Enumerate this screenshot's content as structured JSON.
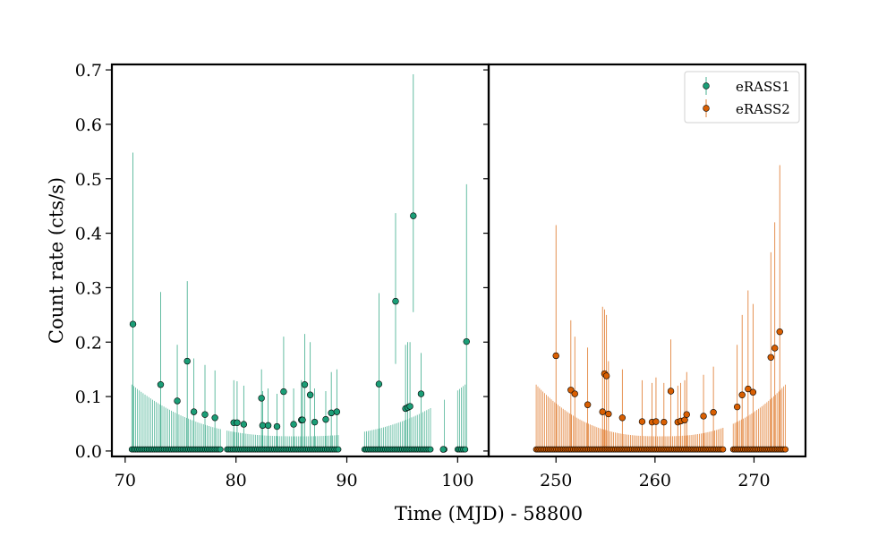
{
  "chart_data": {
    "type": "scatter",
    "title": "",
    "ylabel": "Count rate (cts/s)",
    "xlabel": "Time (MJD) - 58800",
    "colors": {
      "erass1": "#1b9e77",
      "erass2": "#d95f02"
    },
    "legend": {
      "placement": "top-right",
      "entries": [
        {
          "name": "eRASS1",
          "color": "#1b9e77"
        },
        {
          "name": "eRASS2",
          "color": "#d95f02"
        }
      ]
    },
    "ylim": [
      -0.01,
      0.71
    ],
    "yticks": [
      0.0,
      0.1,
      0.2,
      0.3,
      0.4,
      0.5,
      0.6,
      0.7
    ],
    "ytick_labels": [
      "0.0",
      "0.1",
      "0.2",
      "0.3",
      "0.4",
      "0.5",
      "0.6",
      "0.7"
    ],
    "panels": [
      {
        "xlim": [
          68.8,
          102.8
        ],
        "xticks": [
          70,
          80,
          90,
          100
        ],
        "xtick_labels": [
          "70",
          "80",
          "90",
          "100"
        ],
        "series": [
          {
            "name": "eRASS1",
            "color": "#1b9e77",
            "zero_segments": [
              {
                "start": 70.6,
                "end": 78.6,
                "step": 0.17
              },
              {
                "start": 79.2,
                "end": 89.3,
                "step": 0.17
              },
              {
                "start": 91.6,
                "end": 97.7,
                "step": 0.17
              },
              {
                "start": 98.8,
                "end": 98.8,
                "step": 0.17
              },
              {
                "start": 100.0,
                "end": 100.8,
                "step": 0.17
              }
            ],
            "points": [
              {
                "x": 70.7,
                "y": 0.233,
                "err": [
                  0.0,
                  0.548
                ]
              },
              {
                "x": 73.2,
                "y": 0.122,
                "err": [
                  0.0,
                  0.292
                ]
              },
              {
                "x": 74.7,
                "y": 0.092,
                "err": [
                  0.0,
                  0.195
                ]
              },
              {
                "x": 75.6,
                "y": 0.165,
                "err": [
                  0.0,
                  0.312
                ]
              },
              {
                "x": 76.2,
                "y": 0.072,
                "err": [
                  0.0,
                  0.17
                ]
              },
              {
                "x": 77.2,
                "y": 0.067,
                "err": [
                  0.0,
                  0.158
                ]
              },
              {
                "x": 78.1,
                "y": 0.061,
                "err": [
                  0.0,
                  0.148
                ]
              },
              {
                "x": 79.8,
                "y": 0.052,
                "err": [
                  0.0,
                  0.13
                ]
              },
              {
                "x": 80.1,
                "y": 0.052,
                "err": [
                  0.0,
                  0.128
                ]
              },
              {
                "x": 80.7,
                "y": 0.049,
                "err": [
                  0.0,
                  0.12
                ]
              },
              {
                "x": 82.3,
                "y": 0.097,
                "err": [
                  0.0,
                  0.15
                ]
              },
              {
                "x": 82.4,
                "y": 0.047,
                "err": [
                  0.0,
                  0.11
                ]
              },
              {
                "x": 82.9,
                "y": 0.047,
                "err": [
                  0.0,
                  0.115
                ]
              },
              {
                "x": 83.7,
                "y": 0.045,
                "err": [
                  0.0,
                  0.105
                ]
              },
              {
                "x": 84.3,
                "y": 0.109,
                "err": [
                  0.0,
                  0.21
                ]
              },
              {
                "x": 85.2,
                "y": 0.049,
                "err": [
                  0.0,
                  0.115
                ]
              },
              {
                "x": 85.9,
                "y": 0.057,
                "err": [
                  0.0,
                  0.13
                ]
              },
              {
                "x": 86.0,
                "y": 0.057,
                "err": [
                  0.0,
                  0.12
                ]
              },
              {
                "x": 86.2,
                "y": 0.122,
                "err": [
                  0.0,
                  0.215
                ]
              },
              {
                "x": 86.7,
                "y": 0.103,
                "err": [
                  0.0,
                  0.2
                ]
              },
              {
                "x": 87.1,
                "y": 0.053,
                "err": [
                  0.0,
                  0.115
                ]
              },
              {
                "x": 88.1,
                "y": 0.058,
                "err": [
                  0.0,
                  0.11
                ]
              },
              {
                "x": 88.6,
                "y": 0.07,
                "err": [
                  0.0,
                  0.145
                ]
              },
              {
                "x": 89.1,
                "y": 0.072,
                "err": [
                  0.0,
                  0.15
                ]
              },
              {
                "x": 92.9,
                "y": 0.123,
                "err": [
                  0.0,
                  0.29
                ]
              },
              {
                "x": 94.4,
                "y": 0.275,
                "err": [
                  0.16,
                  0.437
                ]
              },
              {
                "x": 95.3,
                "y": 0.078,
                "err": [
                  0.0,
                  0.195
                ]
              },
              {
                "x": 95.5,
                "y": 0.08,
                "err": [
                  0.0,
                  0.2
                ]
              },
              {
                "x": 95.7,
                "y": 0.082,
                "err": [
                  0.0,
                  0.2
                ]
              },
              {
                "x": 96.0,
                "y": 0.432,
                "err": [
                  0.255,
                  0.692
                ]
              },
              {
                "x": 96.7,
                "y": 0.105,
                "err": [
                  0.0,
                  0.18
                ]
              },
              {
                "x": 98.7,
                "y": 0.003,
                "err": [
                  0.0,
                  0.0
                ]
              },
              {
                "x": 100.8,
                "y": 0.201,
                "err": [
                  0.0,
                  0.49
                ]
              }
            ]
          }
        ]
      },
      {
        "xlim": [
          243.2,
          275.2
        ],
        "xticks": [
          250,
          260,
          270
        ],
        "xtick_labels": [
          "250",
          "260",
          "270"
        ],
        "series": [
          {
            "name": "eRASS2",
            "color": "#d95f02",
            "zero_segments": [
              {
                "start": 248.0,
                "end": 266.9,
                "step": 0.17
              },
              {
                "start": 267.9,
                "end": 273.2,
                "step": 0.17
              }
            ],
            "points": [
              {
                "x": 250.0,
                "y": 0.175,
                "err": [
                  0.0,
                  0.415
                ]
              },
              {
                "x": 251.5,
                "y": 0.112,
                "err": [
                  0.0,
                  0.24
                ]
              },
              {
                "x": 251.9,
                "y": 0.105,
                "err": [
                  0.0,
                  0.21
                ]
              },
              {
                "x": 253.2,
                "y": 0.085,
                "err": [
                  0.0,
                  0.19
                ]
              },
              {
                "x": 254.7,
                "y": 0.072,
                "err": [
                  0.0,
                  0.265
                ]
              },
              {
                "x": 254.9,
                "y": 0.142,
                "err": [
                  0.0,
                  0.26
                ]
              },
              {
                "x": 255.1,
                "y": 0.138,
                "err": [
                  0.0,
                  0.25
                ]
              },
              {
                "x": 255.3,
                "y": 0.068,
                "err": [
                  0.0,
                  0.165
                ]
              },
              {
                "x": 256.7,
                "y": 0.061,
                "err": [
                  0.0,
                  0.15
                ]
              },
              {
                "x": 258.7,
                "y": 0.054,
                "err": [
                  0.0,
                  0.13
                ]
              },
              {
                "x": 259.7,
                "y": 0.053,
                "err": [
                  0.0,
                  0.125
                ]
              },
              {
                "x": 260.1,
                "y": 0.054,
                "err": [
                  0.0,
                  0.135
                ]
              },
              {
                "x": 260.9,
                "y": 0.053,
                "err": [
                  0.0,
                  0.125
                ]
              },
              {
                "x": 261.6,
                "y": 0.11,
                "err": [
                  0.0,
                  0.205
                ]
              },
              {
                "x": 262.3,
                "y": 0.053,
                "err": [
                  0.0,
                  0.12
                ]
              },
              {
                "x": 262.6,
                "y": 0.055,
                "err": [
                  0.0,
                  0.125
                ]
              },
              {
                "x": 263.0,
                "y": 0.057,
                "err": [
                  0.0,
                  0.13
                ]
              },
              {
                "x": 263.2,
                "y": 0.067,
                "err": [
                  0.0,
                  0.145
                ]
              },
              {
                "x": 264.9,
                "y": 0.064,
                "err": [
                  0.0,
                  0.14
                ]
              },
              {
                "x": 265.9,
                "y": 0.071,
                "err": [
                  0.0,
                  0.155
                ]
              },
              {
                "x": 268.3,
                "y": 0.081,
                "err": [
                  0.0,
                  0.195
                ]
              },
              {
                "x": 268.8,
                "y": 0.103,
                "err": [
                  0.0,
                  0.25
                ]
              },
              {
                "x": 269.4,
                "y": 0.114,
                "err": [
                  0.0,
                  0.295
                ]
              },
              {
                "x": 269.9,
                "y": 0.108,
                "err": [
                  0.0,
                  0.27
                ]
              },
              {
                "x": 271.7,
                "y": 0.172,
                "err": [
                  0.0,
                  0.365
                ]
              },
              {
                "x": 272.1,
                "y": 0.189,
                "err": [
                  0.0,
                  0.42
                ]
              },
              {
                "x": 272.6,
                "y": 0.219,
                "err": [
                  0.0,
                  0.525
                ]
              }
            ]
          }
        ]
      }
    ]
  }
}
